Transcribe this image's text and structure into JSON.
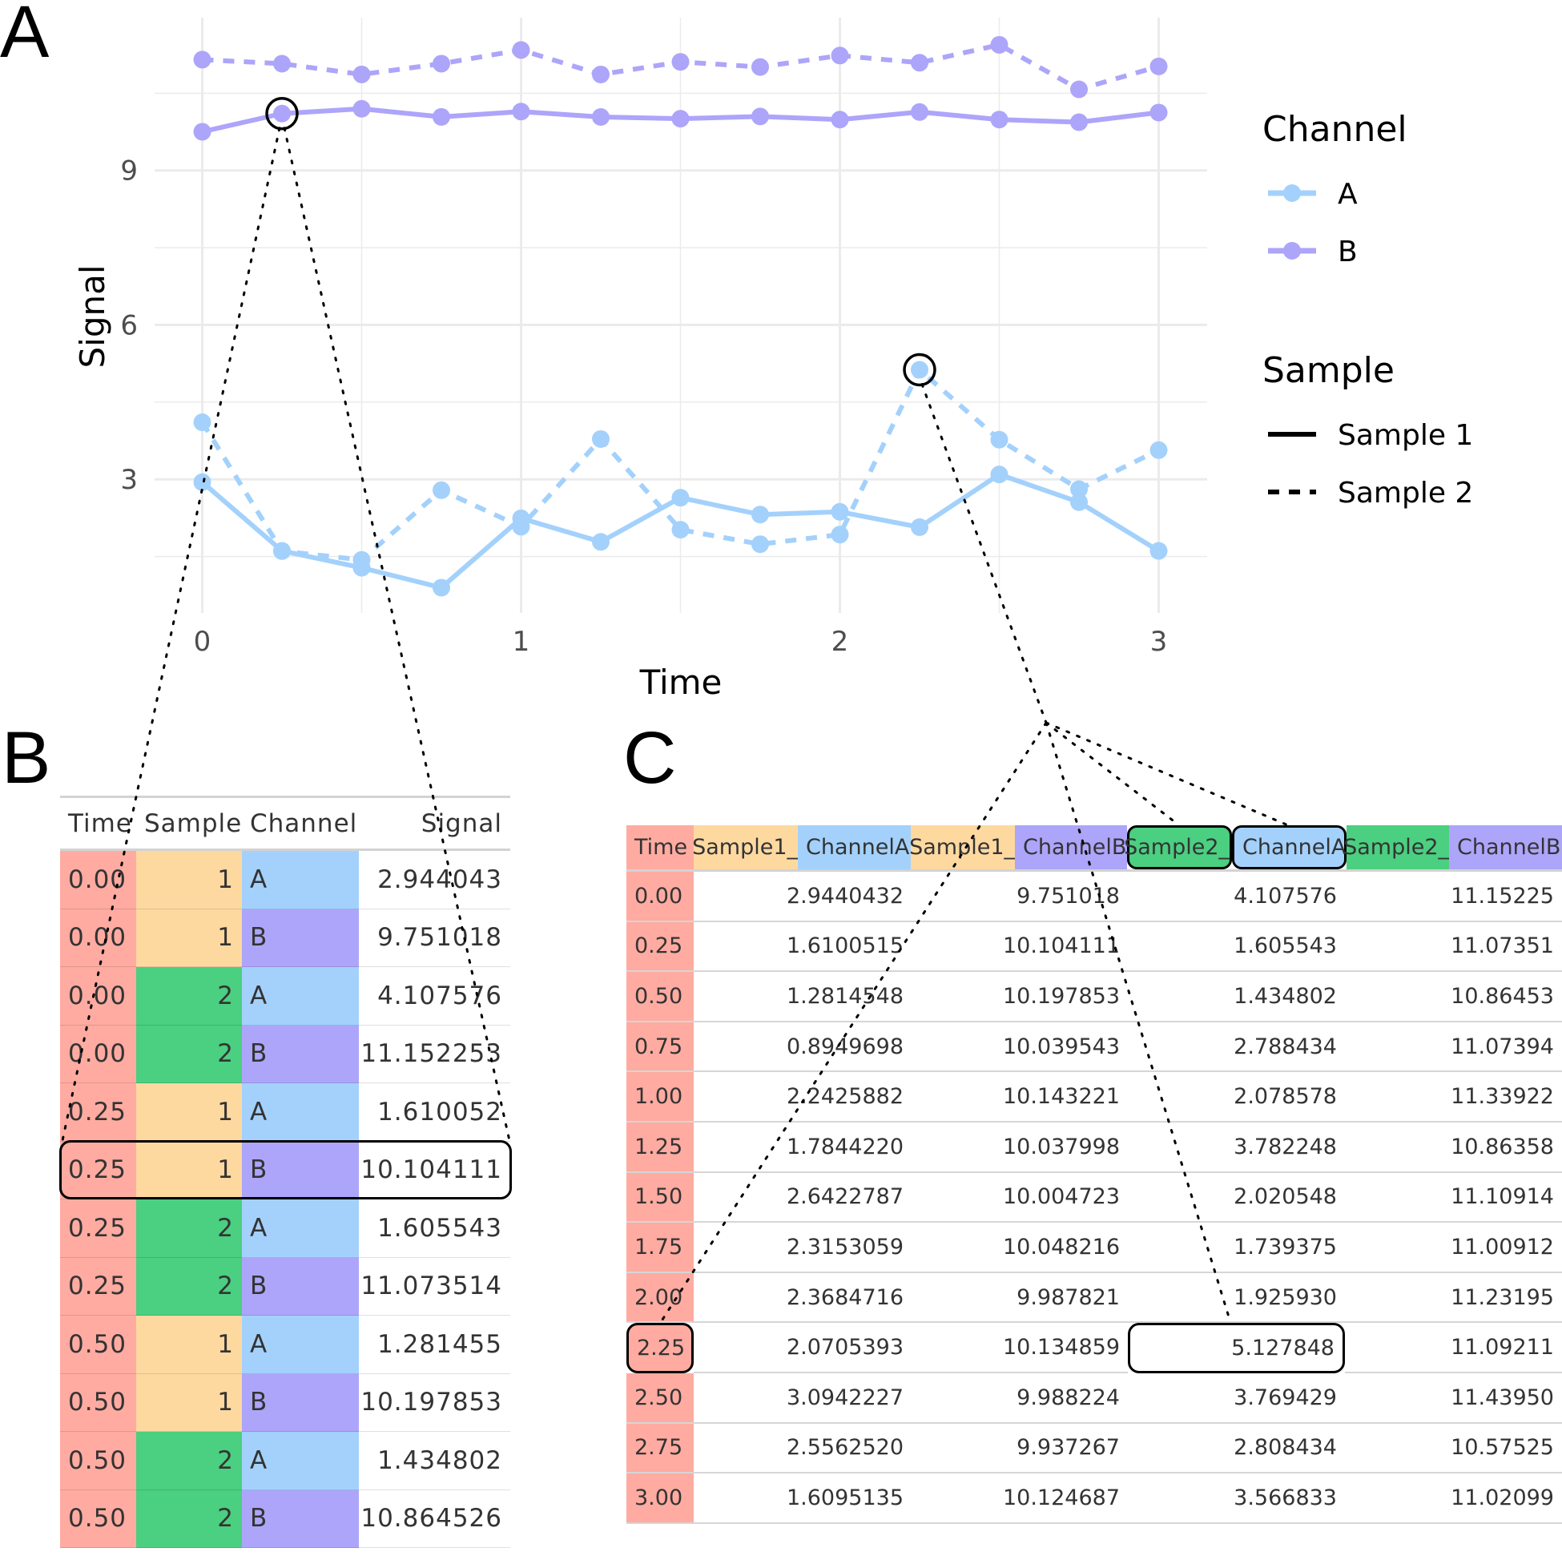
{
  "panels": {
    "a": "A",
    "b": "B",
    "c": "C"
  },
  "colors": {
    "channel_a": "#A3D1FC",
    "channel_b": "#ADA5FA",
    "sample1": "#FDD9A0",
    "sample2": "#4BCF80",
    "time": "#FFABA1"
  },
  "chart_data": {
    "type": "line",
    "xlabel": "Time",
    "ylabel": "Signal",
    "xlim": [
      -0.15,
      3.15
    ],
    "ylim": [
      0.5,
      11.6
    ],
    "xticks": [
      0,
      1,
      2,
      3
    ],
    "yticks": [
      3,
      6,
      9
    ],
    "grid": true,
    "legend_position": "right",
    "x": [
      0,
      0.25,
      0.5,
      0.75,
      1,
      1.25,
      1.5,
      1.75,
      2,
      2.25,
      2.5,
      2.75,
      3
    ],
    "series": [
      {
        "channel": "A",
        "sample": "Sample 1",
        "values": [
          2.9440432,
          1.6100515,
          1.2814548,
          0.8949698,
          2.2425882,
          1.784422,
          2.6422787,
          2.3153059,
          2.3684716,
          2.0705393,
          3.0942227,
          2.556252,
          1.6095135
        ]
      },
      {
        "channel": "B",
        "sample": "Sample 1",
        "values": [
          9.751018,
          10.104111,
          10.197853,
          10.039543,
          10.143221,
          10.037998,
          10.004723,
          10.048216,
          9.987821,
          10.134859,
          9.988224,
          9.937267,
          10.124687
        ]
      },
      {
        "channel": "A",
        "sample": "Sample 2",
        "values": [
          4.107576,
          1.605543,
          1.434802,
          2.788434,
          2.078578,
          3.782248,
          2.020548,
          1.739375,
          1.92593,
          5.127848,
          3.769429,
          2.808434,
          3.566833
        ]
      },
      {
        "channel": "B",
        "sample": "Sample 2",
        "values": [
          11.15225,
          11.07351,
          10.86453,
          11.07394,
          11.33922,
          10.86358,
          11.10914,
          11.00912,
          11.23195,
          11.09211,
          11.4395,
          10.57525,
          11.02099
        ]
      }
    ],
    "highlighted_points": [
      {
        "x": 0.25,
        "channel": "B",
        "sample": "Sample 1"
      },
      {
        "x": 2.25,
        "channel": "A",
        "sample": "Sample 2"
      }
    ],
    "legend": {
      "channel_title": "Channel",
      "channel_items": [
        "A",
        "B"
      ],
      "sample_title": "Sample",
      "sample_items": [
        "Sample 1",
        "Sample 2"
      ]
    }
  },
  "table_long": {
    "headers": [
      "Time",
      "Sample",
      "Channel",
      "Signal"
    ],
    "rows": [
      [
        "0.00",
        "1",
        "A",
        "2.944043"
      ],
      [
        "0.00",
        "1",
        "B",
        "9.751018"
      ],
      [
        "0.00",
        "2",
        "A",
        "4.107576"
      ],
      [
        "0.00",
        "2",
        "B",
        "11.152253"
      ],
      [
        "0.25",
        "1",
        "A",
        "1.610052"
      ],
      [
        "0.25",
        "1",
        "B",
        "10.104111"
      ],
      [
        "0.25",
        "2",
        "A",
        "1.605543"
      ],
      [
        "0.25",
        "2",
        "B",
        "11.073514"
      ],
      [
        "0.50",
        "1",
        "A",
        "1.281455"
      ],
      [
        "0.50",
        "1",
        "B",
        "10.197853"
      ],
      [
        "0.50",
        "2",
        "A",
        "1.434802"
      ],
      [
        "0.50",
        "2",
        "B",
        "10.864526"
      ]
    ],
    "highlighted_row": 5
  },
  "table_wide": {
    "headers": [
      {
        "parts": [
          "Time"
        ]
      },
      {
        "parts": [
          "Sample1_",
          "ChannelA"
        ]
      },
      {
        "parts": [
          "Sample1_",
          "ChannelB"
        ]
      },
      {
        "parts": [
          "Sample2_",
          "ChannelA"
        ]
      },
      {
        "parts": [
          "Sample2_",
          "ChannelB"
        ]
      }
    ],
    "rows": [
      [
        "0.00",
        "2.9440432",
        "9.751018",
        "4.107576",
        "11.15225"
      ],
      [
        "0.25",
        "1.6100515",
        "10.104111",
        "1.605543",
        "11.07351"
      ],
      [
        "0.50",
        "1.2814548",
        "10.197853",
        "1.434802",
        "10.86453"
      ],
      [
        "0.75",
        "0.8949698",
        "10.039543",
        "2.788434",
        "11.07394"
      ],
      [
        "1.00",
        "2.2425882",
        "10.143221",
        "2.078578",
        "11.33922"
      ],
      [
        "1.25",
        "1.7844220",
        "10.037998",
        "3.782248",
        "10.86358"
      ],
      [
        "1.50",
        "2.6422787",
        "10.004723",
        "2.020548",
        "11.10914"
      ],
      [
        "1.75",
        "2.3153059",
        "10.048216",
        "1.739375",
        "11.00912"
      ],
      [
        "2.00",
        "2.3684716",
        "9.987821",
        "1.925930",
        "11.23195"
      ],
      [
        "2.25",
        "2.0705393",
        "10.134859",
        "5.127848",
        "11.09211"
      ],
      [
        "2.50",
        "3.0942227",
        "9.988224",
        "3.769429",
        "11.43950"
      ],
      [
        "2.75",
        "2.5562520",
        "9.937267",
        "2.808434",
        "10.57525"
      ],
      [
        "3.00",
        "1.6095135",
        "10.124687",
        "3.566833",
        "11.02099"
      ]
    ],
    "highlighted_row": 9,
    "highlighted_col": 3
  }
}
